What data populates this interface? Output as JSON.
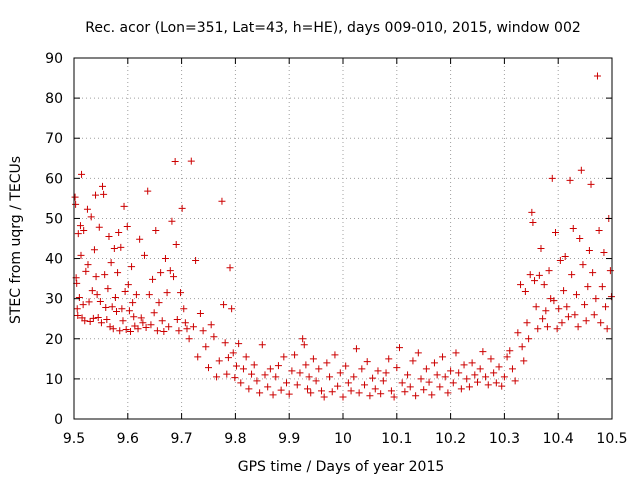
{
  "chart_data": {
    "type": "scatter",
    "title": "Rec. acor (Lon=351, Lat=43, h=HE), days 009-010, 2015, window 002",
    "xlabel": "GPS time / Days of year 2015",
    "ylabel": "STEC from uqrg / TECUs",
    "xlim": [
      9.5,
      10.5
    ],
    "ylim": [
      0,
      90
    ],
    "xticks": [
      "9.5",
      "9.6",
      "9.7",
      "9.8",
      "9.9",
      "10",
      "10.1",
      "10.2",
      "10.3",
      "10.4",
      "10.5"
    ],
    "yticks": [
      "0",
      "10",
      "20",
      "30",
      "40",
      "50",
      "60",
      "70",
      "80",
      "90"
    ],
    "xtick_values": [
      9.5,
      9.6,
      9.7,
      9.8,
      9.9,
      10.0,
      10.1,
      10.2,
      10.3,
      10.4,
      10.5
    ],
    "ytick_values": [
      0,
      10,
      20,
      30,
      40,
      50,
      60,
      70,
      80,
      90
    ],
    "grid": true,
    "marker": "plus",
    "color": "#cc0000",
    "series": [
      {
        "points": [
          [
            9.502,
            55.3
          ],
          [
            9.503,
            53.5
          ],
          [
            9.504,
            35.2
          ],
          [
            9.505,
            33.8
          ],
          [
            9.506,
            27.5
          ],
          [
            9.507,
            25.8
          ],
          [
            9.508,
            46.2
          ],
          [
            9.51,
            30.3
          ],
          [
            9.512,
            48.2
          ],
          [
            9.513,
            40.8
          ],
          [
            9.514,
            61.0
          ],
          [
            9.515,
            25.2
          ],
          [
            9.517,
            28.5
          ],
          [
            9.518,
            47.0
          ],
          [
            9.52,
            24.5
          ],
          [
            9.522,
            36.8
          ],
          [
            9.525,
            52.3
          ],
          [
            9.526,
            38.5
          ],
          [
            9.528,
            29.2
          ],
          [
            9.53,
            24.3
          ],
          [
            9.532,
            50.4
          ],
          [
            9.534,
            32.0
          ],
          [
            9.536,
            25.1
          ],
          [
            9.538,
            42.2
          ],
          [
            9.54,
            55.8
          ],
          [
            9.541,
            35.5
          ],
          [
            9.543,
            31.0
          ],
          [
            9.545,
            25.3
          ],
          [
            9.547,
            47.8
          ],
          [
            9.549,
            29.3
          ],
          [
            9.551,
            24.0
          ],
          [
            9.553,
            58.0
          ],
          [
            9.555,
            56.0
          ],
          [
            9.557,
            36.0
          ],
          [
            9.559,
            27.8
          ],
          [
            9.561,
            24.8
          ],
          [
            9.563,
            32.5
          ],
          [
            9.565,
            45.5
          ],
          [
            9.567,
            23.0
          ],
          [
            9.569,
            39.0
          ],
          [
            9.571,
            28.0
          ],
          [
            9.573,
            22.5
          ],
          [
            9.575,
            42.5
          ],
          [
            9.577,
            30.3
          ],
          [
            9.579,
            26.8
          ],
          [
            9.581,
            36.5
          ],
          [
            9.583,
            46.5
          ],
          [
            9.585,
            22.0
          ],
          [
            9.587,
            42.8
          ],
          [
            9.589,
            27.5
          ],
          [
            9.591,
            24.5
          ],
          [
            9.593,
            53.0
          ],
          [
            9.595,
            31.8
          ],
          [
            9.597,
            22.3
          ],
          [
            9.599,
            48.0
          ],
          [
            9.601,
            33.5
          ],
          [
            9.603,
            27.0
          ],
          [
            9.605,
            21.8
          ],
          [
            9.607,
            38.0
          ],
          [
            9.609,
            29.0
          ],
          [
            9.611,
            25.5
          ],
          [
            9.613,
            23.2
          ],
          [
            9.616,
            31.0
          ],
          [
            9.619,
            22.5
          ],
          [
            9.622,
            44.8
          ],
          [
            9.625,
            25.2
          ],
          [
            9.628,
            24.0
          ],
          [
            9.631,
            40.8
          ],
          [
            9.634,
            22.8
          ],
          [
            9.637,
            56.8
          ],
          [
            9.64,
            31.0
          ],
          [
            9.643,
            23.5
          ],
          [
            9.646,
            34.8
          ],
          [
            9.649,
            26.5
          ],
          [
            9.652,
            47.0
          ],
          [
            9.655,
            22.0
          ],
          [
            9.658,
            29.0
          ],
          [
            9.661,
            36.5
          ],
          [
            9.664,
            24.5
          ],
          [
            9.667,
            21.8
          ],
          [
            9.67,
            40.0
          ],
          [
            9.673,
            31.5
          ],
          [
            9.676,
            23.0
          ],
          [
            9.679,
            37.0
          ],
          [
            9.682,
            49.3
          ],
          [
            9.685,
            35.5
          ],
          [
            9.688,
            64.2
          ],
          [
            9.69,
            43.5
          ],
          [
            9.692,
            24.8
          ],
          [
            9.695,
            22.0
          ],
          [
            9.698,
            31.5
          ],
          [
            9.701,
            52.5
          ],
          [
            9.704,
            27.5
          ],
          [
            9.707,
            24.0
          ],
          [
            9.71,
            22.5
          ],
          [
            9.714,
            20.0
          ],
          [
            9.718,
            64.3
          ],
          [
            9.722,
            23.0
          ],
          [
            9.726,
            39.5
          ],
          [
            9.73,
            15.5
          ],
          [
            9.735,
            26.3
          ],
          [
            9.74,
            22.0
          ],
          [
            9.745,
            18.0
          ],
          [
            9.75,
            12.8
          ],
          [
            9.755,
            23.5
          ],
          [
            9.76,
            20.5
          ],
          [
            9.765,
            10.5
          ],
          [
            9.77,
            14.5
          ],
          [
            9.775,
            54.3
          ],
          [
            9.778,
            28.5
          ],
          [
            9.781,
            19.0
          ],
          [
            9.784,
            11.2
          ],
          [
            9.787,
            15.3
          ],
          [
            9.79,
            37.7
          ],
          [
            9.793,
            27.5
          ],
          [
            9.796,
            16.5
          ],
          [
            9.799,
            10.3
          ],
          [
            9.802,
            13.2
          ],
          [
            9.806,
            18.8
          ],
          [
            9.81,
            9.0
          ],
          [
            9.815,
            12.5
          ],
          [
            9.82,
            15.5
          ],
          [
            9.825,
            7.5
          ],
          [
            9.83,
            11.2
          ],
          [
            9.835,
            13.5
          ],
          [
            9.84,
            9.5
          ],
          [
            9.845,
            6.5
          ],
          [
            9.85,
            18.5
          ],
          [
            9.855,
            11.0
          ],
          [
            9.86,
            8.0
          ],
          [
            9.865,
            12.5
          ],
          [
            9.87,
            6.0
          ],
          [
            9.875,
            10.5
          ],
          [
            9.88,
            13.3
          ],
          [
            9.885,
            7.2
          ],
          [
            9.89,
            15.5
          ],
          [
            9.895,
            9.0
          ],
          [
            9.9,
            6.2
          ],
          [
            9.905,
            12.0
          ],
          [
            9.91,
            16.0
          ],
          [
            9.915,
            8.5
          ],
          [
            9.92,
            11.5
          ],
          [
            9.925,
            20.0
          ],
          [
            9.928,
            18.5
          ],
          [
            9.931,
            13.5
          ],
          [
            9.934,
            7.5
          ],
          [
            9.937,
            10.5
          ],
          [
            9.94,
            6.5
          ],
          [
            9.945,
            15.0
          ],
          [
            9.95,
            9.5
          ],
          [
            9.955,
            12.5
          ],
          [
            9.96,
            7.0
          ],
          [
            9.965,
            5.5
          ],
          [
            9.97,
            14.0
          ],
          [
            9.975,
            10.5
          ],
          [
            9.98,
            6.8
          ],
          [
            9.985,
            16.0
          ],
          [
            9.99,
            8.2
          ],
          [
            9.995,
            11.5
          ],
          [
            10.0,
            5.5
          ],
          [
            10.005,
            13.2
          ],
          [
            10.01,
            9.0
          ],
          [
            10.015,
            7.0
          ],
          [
            10.02,
            10.5
          ],
          [
            10.025,
            17.5
          ],
          [
            10.03,
            6.5
          ],
          [
            10.035,
            12.5
          ],
          [
            10.04,
            8.5
          ],
          [
            10.045,
            14.3
          ],
          [
            10.05,
            5.8
          ],
          [
            10.055,
            10.2
          ],
          [
            10.06,
            7.5
          ],
          [
            10.065,
            12.0
          ],
          [
            10.07,
            6.3
          ],
          [
            10.075,
            9.5
          ],
          [
            10.08,
            11.5
          ],
          [
            10.085,
            15.0
          ],
          [
            10.09,
            7.0
          ],
          [
            10.095,
            5.5
          ],
          [
            10.1,
            12.8
          ],
          [
            10.105,
            17.8
          ],
          [
            10.11,
            9.0
          ],
          [
            10.115,
            6.8
          ],
          [
            10.12,
            11.0
          ],
          [
            10.125,
            8.0
          ],
          [
            10.13,
            14.5
          ],
          [
            10.135,
            5.8
          ],
          [
            10.14,
            16.5
          ],
          [
            10.145,
            10.0
          ],
          [
            10.15,
            7.3
          ],
          [
            10.155,
            12.5
          ],
          [
            10.16,
            9.2
          ],
          [
            10.165,
            6.0
          ],
          [
            10.17,
            14.0
          ],
          [
            10.175,
            11.0
          ],
          [
            10.18,
            8.0
          ],
          [
            10.185,
            15.5
          ],
          [
            10.19,
            10.5
          ],
          [
            10.195,
            6.5
          ],
          [
            10.2,
            12.0
          ],
          [
            10.205,
            9.0
          ],
          [
            10.21,
            16.5
          ],
          [
            10.215,
            11.5
          ],
          [
            10.22,
            7.5
          ],
          [
            10.225,
            13.5
          ],
          [
            10.23,
            10.0
          ],
          [
            10.235,
            8.0
          ],
          [
            10.24,
            14.0
          ],
          [
            10.245,
            11.0
          ],
          [
            10.25,
            9.2
          ],
          [
            10.255,
            12.5
          ],
          [
            10.26,
            16.8
          ],
          [
            10.265,
            10.5
          ],
          [
            10.27,
            8.5
          ],
          [
            10.275,
            15.0
          ],
          [
            10.28,
            11.5
          ],
          [
            10.285,
            9.0
          ],
          [
            10.29,
            13.0
          ],
          [
            10.295,
            8.2
          ],
          [
            10.3,
            10.5
          ],
          [
            10.305,
            15.5
          ],
          [
            10.31,
            17.0
          ],
          [
            10.315,
            12.5
          ],
          [
            10.32,
            9.5
          ],
          [
            10.325,
            21.5
          ],
          [
            10.33,
            33.5
          ],
          [
            10.333,
            18.0
          ],
          [
            10.336,
            14.5
          ],
          [
            10.339,
            31.8
          ],
          [
            10.342,
            24.0
          ],
          [
            10.345,
            20.0
          ],
          [
            10.348,
            36.0
          ],
          [
            10.351,
            51.5
          ],
          [
            10.353,
            49.0
          ],
          [
            10.356,
            34.5
          ],
          [
            10.359,
            28.0
          ],
          [
            10.362,
            22.5
          ],
          [
            10.365,
            35.8
          ],
          [
            10.368,
            42.5
          ],
          [
            10.371,
            25.0
          ],
          [
            10.374,
            33.5
          ],
          [
            10.377,
            27.0
          ],
          [
            10.38,
            23.0
          ],
          [
            10.383,
            37.0
          ],
          [
            10.386,
            30.0
          ],
          [
            10.389,
            60.0
          ],
          [
            10.392,
            29.5
          ],
          [
            10.395,
            46.5
          ],
          [
            10.398,
            22.5
          ],
          [
            10.401,
            27.5
          ],
          [
            10.404,
            39.5
          ],
          [
            10.407,
            24.0
          ],
          [
            10.41,
            32.0
          ],
          [
            10.413,
            40.5
          ],
          [
            10.416,
            28.0
          ],
          [
            10.419,
            25.5
          ],
          [
            10.422,
            59.5
          ],
          [
            10.425,
            36.0
          ],
          [
            10.428,
            47.5
          ],
          [
            10.431,
            26.0
          ],
          [
            10.434,
            31.0
          ],
          [
            10.437,
            23.0
          ],
          [
            10.44,
            45.0
          ],
          [
            10.443,
            62.0
          ],
          [
            10.446,
            38.5
          ],
          [
            10.449,
            28.5
          ],
          [
            10.452,
            24.5
          ],
          [
            10.455,
            33.0
          ],
          [
            10.458,
            42.0
          ],
          [
            10.461,
            58.5
          ],
          [
            10.464,
            36.5
          ],
          [
            10.467,
            26.0
          ],
          [
            10.47,
            30.0
          ],
          [
            10.473,
            85.5
          ],
          [
            10.476,
            47.0
          ],
          [
            10.479,
            24.0
          ],
          [
            10.482,
            33.0
          ],
          [
            10.485,
            41.5
          ],
          [
            10.488,
            28.0
          ],
          [
            10.491,
            22.5
          ],
          [
            10.494,
            50.0
          ],
          [
            10.497,
            37.0
          ],
          [
            10.499,
            30.5
          ]
        ]
      }
    ]
  }
}
